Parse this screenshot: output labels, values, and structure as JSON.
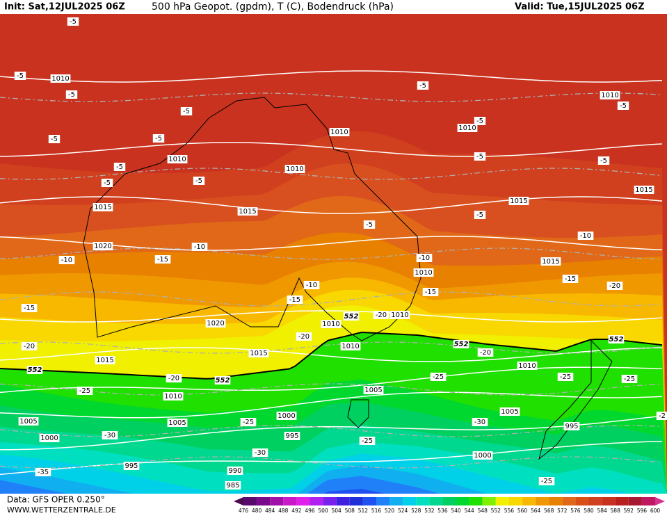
{
  "header": {
    "init": "Init: Sat,12JUL2025 06Z",
    "title": "500 hPa Geopot. (gpdm), T (C), Bodendruck (hPa)",
    "valid": "Valid: Tue,15JUL2025 06Z"
  },
  "footer": {
    "data": "Data: GFS OPER 0.250°",
    "site": "WWW.WETTERZENTRALE.DE"
  },
  "map": {
    "pressure_labels": [
      "1010",
      "1010",
      "1010",
      "1010",
      "1010",
      "1010",
      "1015",
      "1015",
      "1015",
      "1015",
      "1020",
      "1015",
      "1010",
      "1020",
      "1010",
      "1010",
      "1010",
      "1015",
      "1015",
      "1010",
      "1010",
      "1005",
      "1005",
      "1005",
      "1000",
      "1005",
      "995",
      "1000",
      "995",
      "1000",
      "995",
      "990",
      "985"
    ],
    "temperature_labels": [
      "-5",
      "-5",
      "-5",
      "-5",
      "-5",
      "-5",
      "-5",
      "-5",
      "-5",
      "-5",
      "-5",
      "-5",
      "-5",
      "-5",
      "-5",
      "-5",
      "-10",
      "-10",
      "-15",
      "-10",
      "-10",
      "-10",
      "-15",
      "-15",
      "-15",
      "-15",
      "-20",
      "-20",
      "-20",
      "-20",
      "-20",
      "-20",
      "-25",
      "-25",
      "-25",
      "-25",
      "-25",
      "-30",
      "-30",
      "-30",
      "-25",
      "-35",
      "-25",
      "-2"
    ],
    "geopotential_labels": [
      "552",
      "552",
      "552",
      "552",
      "552"
    ]
  },
  "colorbar": {
    "levels": [
      476,
      480,
      484,
      488,
      492,
      496,
      500,
      504,
      508,
      512,
      516,
      520,
      524,
      528,
      532,
      536,
      540,
      544,
      548,
      552,
      556,
      560,
      564,
      568,
      572,
      576,
      580,
      584,
      588,
      592,
      596,
      600
    ],
    "colors": [
      "#4b0a4b",
      "#5a0a6e",
      "#7a0a8c",
      "#a010a8",
      "#c818c8",
      "#e020e8",
      "#b020f0",
      "#7820f0",
      "#4020e0",
      "#2030d8",
      "#2050f0",
      "#2080f8",
      "#10b0f0",
      "#00d0e8",
      "#00e0c0",
      "#00d890",
      "#00d060",
      "#00d830",
      "#20e000",
      "#80f000",
      "#f0f000",
      "#f8d800",
      "#f8b800",
      "#f09800",
      "#e88000",
      "#e06818",
      "#d85018",
      "#d04020",
      "#c83020",
      "#b82020",
      "#a81830",
      "#c01860",
      "#d83090"
    ]
  }
}
